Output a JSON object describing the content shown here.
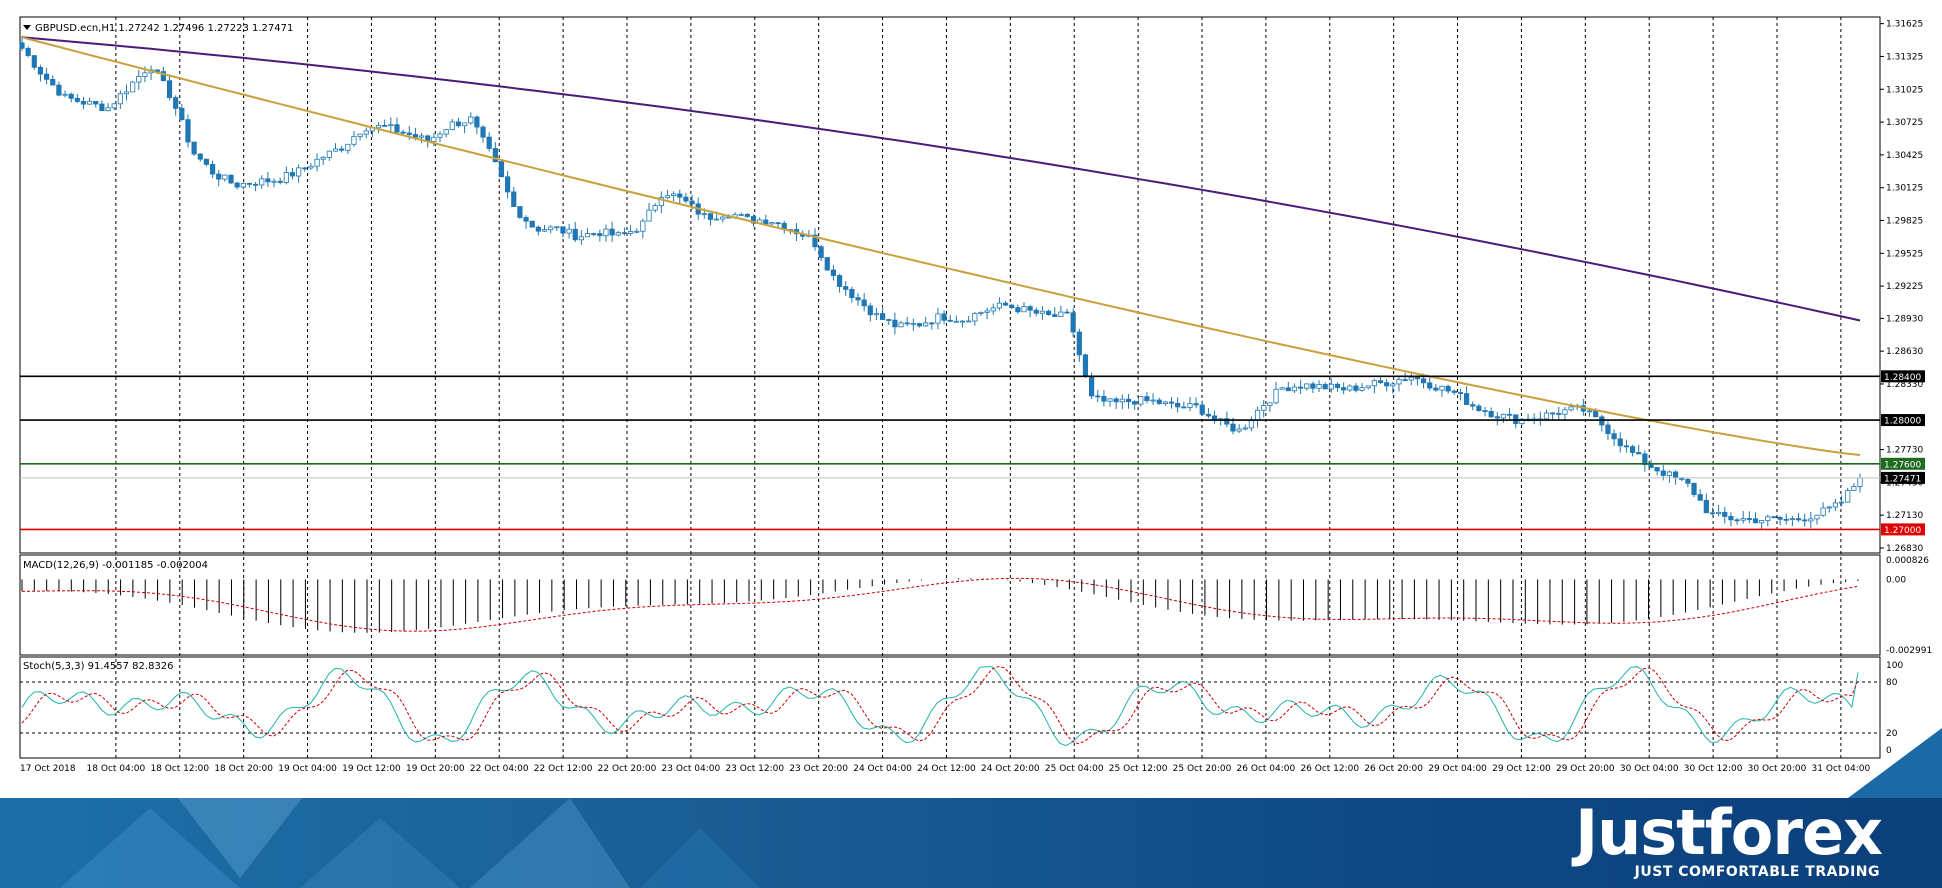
{
  "header": {
    "symbol_info": "GBPUSD.ecn,H1  1.27242 1.27496 1.27223 1.27471",
    "dropdown_icon": "triangle-down-icon"
  },
  "chart_data": [
    {
      "type": "candlestick",
      "title": "GBPUSD.ecn,H1  1.27242 1.27496 1.27223 1.27471",
      "ylim": [
        1.2683,
        1.3164
      ],
      "y_ticks": [
        "1.31625",
        "1.31325",
        "1.31025",
        "1.30725",
        "1.30425",
        "1.30125",
        "1.29825",
        "1.29525",
        "1.29225",
        "1.28930",
        "1.28630",
        "1.28330",
        "1.27730",
        "1.27430",
        "1.27130",
        "1.26830"
      ],
      "x_ticks": [
        "17 Oct 2018",
        "18 Oct 04:00",
        "18 Oct 12:00",
        "18 Oct 20:00",
        "19 Oct 04:00",
        "19 Oct 12:00",
        "19 Oct 20:00",
        "22 Oct 04:00",
        "22 Oct 12:00",
        "22 Oct 20:00",
        "23 Oct 04:00",
        "23 Oct 12:00",
        "23 Oct 20:00",
        "24 Oct 04:00",
        "24 Oct 12:00",
        "24 Oct 20:00",
        "25 Oct 04:00",
        "25 Oct 12:00",
        "25 Oct 20:00",
        "26 Oct 04:00",
        "26 Oct 12:00",
        "26 Oct 20:00",
        "29 Oct 04:00",
        "29 Oct 12:00",
        "29 Oct 20:00",
        "30 Oct 04:00",
        "30 Oct 12:00",
        "30 Oct 20:00",
        "31 Oct 04:00"
      ],
      "close_anchors": [
        1.314,
        1.3115,
        1.3095,
        1.309,
        1.3085,
        1.3105,
        1.3125,
        1.3095,
        1.3045,
        1.3025,
        1.3015,
        1.3018,
        1.302,
        1.3028,
        1.304,
        1.305,
        1.3068,
        1.3068,
        1.3062,
        1.3055,
        1.307,
        1.3075,
        1.304,
        1.2995,
        1.2975,
        1.2975,
        1.2968,
        1.2972,
        1.2968,
        1.2978,
        1.301,
        1.3,
        1.2985,
        1.299,
        1.2983,
        1.2983,
        1.2975,
        1.2965,
        1.293,
        1.2912,
        1.2895,
        1.2885,
        1.2888,
        1.2895,
        1.2892,
        1.29,
        1.2905,
        1.29,
        1.2895,
        1.2895,
        1.282,
        1.2815,
        1.2818,
        1.2817,
        1.2812,
        1.2812,
        1.2798,
        1.279,
        1.2813,
        1.283,
        1.2832,
        1.283,
        1.2828,
        1.2832,
        1.2835,
        1.284,
        1.2832,
        1.2825,
        1.2812,
        1.2805,
        1.28,
        1.2803,
        1.2808,
        1.281,
        1.2795,
        1.2775,
        1.276,
        1.275,
        1.274,
        1.2713,
        1.271,
        1.2709,
        1.2709,
        1.2709,
        1.2714,
        1.2722,
        1.2747
      ],
      "series": [
        {
          "name": "MA slow",
          "color": "#4b1b7a",
          "start": 1.315,
          "end": 1.2891
        },
        {
          "name": "MA fast",
          "color": "#c9a13c",
          "start": 1.315,
          "end": 1.2768
        }
      ],
      "levels": [
        {
          "value": 1.284,
          "label": "1.28400",
          "color": "#000000",
          "label_bg": "#000000"
        },
        {
          "value": 1.28,
          "label": "1.28000",
          "color": "#000000",
          "label_bg": "#000000"
        },
        {
          "value": 1.276,
          "label": "1.27600",
          "color": "#1e6b1e",
          "label_bg": "#1e6b1e"
        },
        {
          "value": 1.27471,
          "label": "1.27471",
          "color": "#c0c0c0",
          "label_bg": "#000000"
        },
        {
          "value": 1.27,
          "label": "1.27000",
          "color": "#e00000",
          "label_bg": "#e00000"
        }
      ],
      "colors": {
        "up_candle": "#ffffff",
        "down_candle": "#1f77b4",
        "outline": "#1f77b4"
      }
    },
    {
      "type": "histogram",
      "title": "MACD(12,26,9) -0.001185 -0.002004",
      "ylim": [
        -0.002991,
        0.000826
      ],
      "y_ticks": [
        "0.000826",
        "0.00",
        "-0.002991"
      ],
      "series": [
        {
          "name": "MACD",
          "color": "#000000"
        },
        {
          "name": "Signal",
          "color": "#cc0000"
        }
      ]
    },
    {
      "type": "line",
      "title": "Stoch(5,3,3) 91.4557 82.8326",
      "ylim": [
        0,
        100
      ],
      "y_ticks": [
        "100",
        "80",
        "20",
        "0"
      ],
      "levels": [
        80,
        20
      ],
      "series": [
        {
          "name": "%K",
          "color": "#20b2aa"
        },
        {
          "name": "%D",
          "color": "#cc0000"
        }
      ]
    }
  ],
  "footer": {
    "logo_text": "Justforex",
    "tagline": "JUST COMFORTABLE TRADING"
  }
}
